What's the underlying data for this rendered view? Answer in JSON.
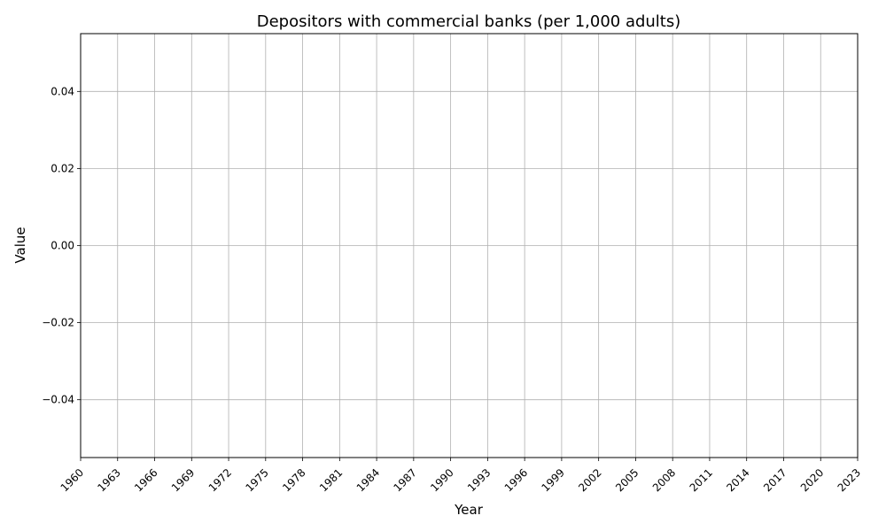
{
  "chart_data": {
    "type": "line",
    "title": "Depositors with commercial banks (per 1,000 adults)",
    "xlabel": "Year",
    "ylabel": "Value",
    "xlim": [
      1960,
      2023
    ],
    "ylim": [
      -0.055,
      0.055
    ],
    "x_ticks": [
      "1960",
      "1963",
      "1966",
      "1969",
      "1972",
      "1975",
      "1978",
      "1981",
      "1984",
      "1987",
      "1990",
      "1993",
      "1996",
      "1999",
      "2002",
      "2005",
      "2008",
      "2011",
      "2014",
      "2017",
      "2020",
      "2023"
    ],
    "y_ticks": [
      "0.04",
      "0.02",
      "0.00",
      "−0.02",
      "−0.04"
    ],
    "y_tick_values": [
      0.04,
      0.02,
      0.0,
      -0.02,
      -0.04
    ],
    "grid": true,
    "series": [],
    "colors": {
      "grid": "#b0b0b0",
      "axis": "#000000"
    }
  }
}
